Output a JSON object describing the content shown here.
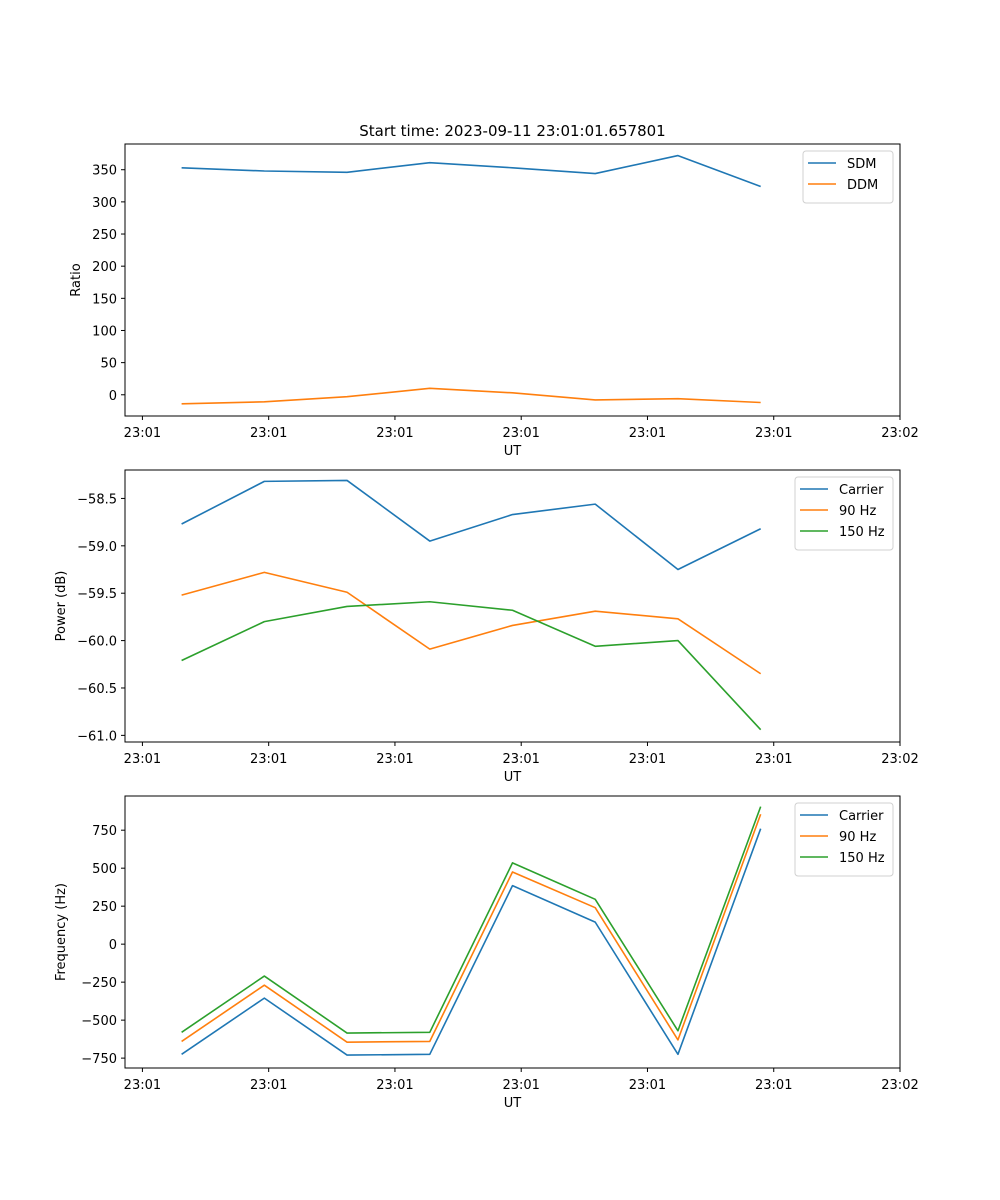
{
  "colors": {
    "blue": "#1f77b4",
    "orange": "#ff7f0e",
    "green": "#2ca02c"
  },
  "chart_data": [
    {
      "type": "line",
      "title": "Start time: 2023-09-11 23:01:01.657801",
      "xlabel": "UT",
      "ylabel": "Ratio",
      "x": [
        0.9,
        2.8,
        4.7,
        6.6,
        8.5,
        10.4,
        12.3,
        14.2
      ],
      "xlim": [
        -0.4,
        17.4
      ],
      "xticks": [
        0,
        2.9,
        5.8,
        8.7,
        11.6,
        14.5,
        17.4
      ],
      "xtick_labels": [
        "23:01",
        "23:01",
        "23:01",
        "23:01",
        "23:01",
        "23:01",
        "23:02"
      ],
      "ylim": [
        -33,
        390
      ],
      "yticks": [
        0,
        50,
        100,
        150,
        200,
        250,
        300,
        350
      ],
      "ytick_labels": [
        "0",
        "50",
        "100",
        "150",
        "200",
        "250",
        "300",
        "350"
      ],
      "legend": "top-right",
      "series": [
        {
          "name": "SDM",
          "color": "#1f77b4",
          "values": [
            353,
            348,
            346,
            361,
            353,
            344,
            372,
            324
          ]
        },
        {
          "name": "DDM",
          "color": "#ff7f0e",
          "values": [
            -14,
            -11,
            -3,
            10,
            3,
            -8,
            -6,
            -12
          ]
        }
      ]
    },
    {
      "type": "line",
      "title": "",
      "xlabel": "UT",
      "ylabel": "Power (dB)",
      "x": [
        0.9,
        2.8,
        4.7,
        6.6,
        8.5,
        10.4,
        12.3,
        14.2
      ],
      "xlim": [
        -0.4,
        17.4
      ],
      "xticks": [
        0,
        2.9,
        5.8,
        8.7,
        11.6,
        14.5,
        17.4
      ],
      "xtick_labels": [
        "23:01",
        "23:01",
        "23:01",
        "23:01",
        "23:01",
        "23:01",
        "23:02"
      ],
      "ylim": [
        -61.07,
        -58.2
      ],
      "yticks": [
        -61.0,
        -60.5,
        -60.0,
        -59.5,
        -59.0,
        -58.5
      ],
      "ytick_labels": [
        "−61.0",
        "−60.5",
        "−60.0",
        "−59.5",
        "−59.0",
        "−58.5"
      ],
      "legend": "top-right",
      "series": [
        {
          "name": "Carrier",
          "color": "#1f77b4",
          "values": [
            -58.77,
            -58.32,
            -58.31,
            -58.95,
            -58.67,
            -58.56,
            -59.25,
            -58.82
          ]
        },
        {
          "name": "90 Hz",
          "color": "#ff7f0e",
          "values": [
            -59.52,
            -59.28,
            -59.49,
            -60.09,
            -59.84,
            -59.69,
            -59.77,
            -60.35
          ]
        },
        {
          "name": "150 Hz",
          "color": "#2ca02c",
          "values": [
            -60.21,
            -59.8,
            -59.64,
            -59.59,
            -59.68,
            -60.06,
            -60.0,
            -60.94
          ]
        }
      ]
    },
    {
      "type": "line",
      "title": "",
      "xlabel": "UT",
      "ylabel": "Frequency (Hz)",
      "x": [
        0.9,
        2.8,
        4.7,
        6.6,
        8.5,
        10.4,
        12.3,
        14.2
      ],
      "xlim": [
        -0.4,
        17.4
      ],
      "xticks": [
        0,
        2.9,
        5.8,
        8.7,
        11.6,
        14.5,
        17.4
      ],
      "xtick_labels": [
        "23:01",
        "23:01",
        "23:01",
        "23:01",
        "23:01",
        "23:01",
        "23:02"
      ],
      "ylim": [
        -815,
        975
      ],
      "yticks": [
        -750,
        -500,
        -250,
        0,
        250,
        500,
        750
      ],
      "ytick_labels": [
        "−750",
        "−500",
        "−250",
        "0",
        "250",
        "500",
        "750"
      ],
      "legend": "top-right",
      "series": [
        {
          "name": "Carrier",
          "color": "#1f77b4",
          "values": [
            -725,
            -355,
            -730,
            -725,
            385,
            145,
            -725,
            760
          ]
        },
        {
          "name": "90 Hz",
          "color": "#ff7f0e",
          "values": [
            -640,
            -270,
            -645,
            -640,
            475,
            240,
            -630,
            855
          ]
        },
        {
          "name": "150 Hz",
          "color": "#2ca02c",
          "values": [
            -580,
            -210,
            -585,
            -580,
            535,
            295,
            -570,
            905
          ]
        }
      ]
    }
  ]
}
